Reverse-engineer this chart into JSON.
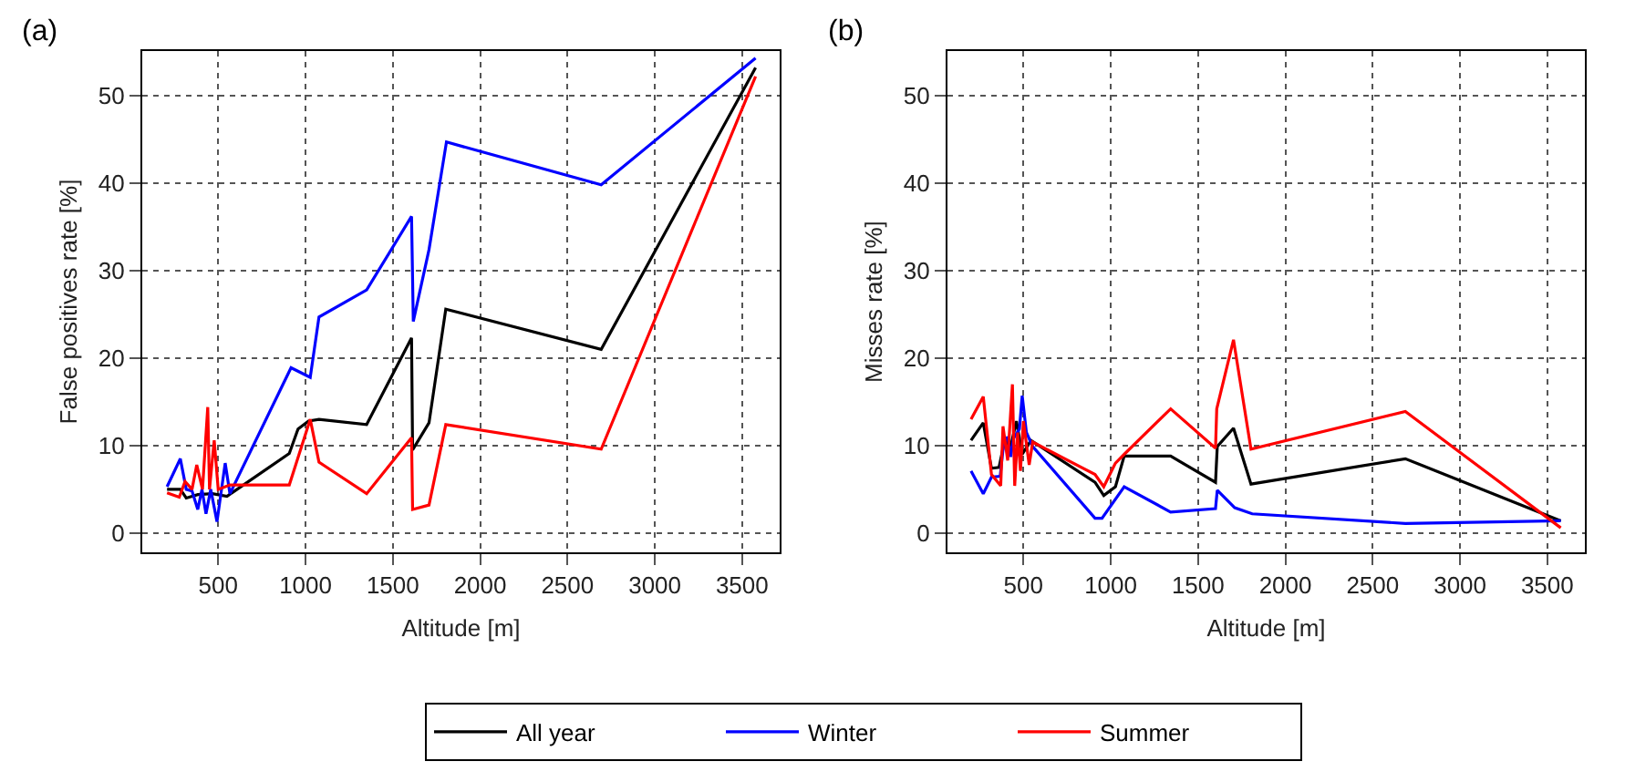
{
  "chart_data": [
    {
      "type": "line",
      "title": "(a)",
      "xlabel": "Altitude [m]",
      "ylabel": "False positives rate [%]",
      "xlim": [
        65,
        3715
      ],
      "ylim": [
        -2.2,
        55.1
      ],
      "xticks": [
        500,
        1000,
        1500,
        2000,
        2500,
        3000,
        3500
      ],
      "yticks": [
        0,
        10,
        20,
        30,
        40,
        50
      ],
      "grid": true,
      "legend": "bottom",
      "line_style": "solid",
      "marker": "none",
      "series": [
        {
          "name": "All year",
          "color": "#000000",
          "x": [
            207,
            283,
            317,
            383,
            467,
            550,
            907,
            957,
            1017,
            1077,
            1350,
            1607,
            1613,
            1707,
            1803,
            2693,
            3577
          ],
          "values": [
            5.0,
            5.0,
            4.0,
            4.4,
            4.5,
            4.2,
            9.1,
            11.9,
            12.8,
            13.0,
            12.4,
            22.3,
            9.5,
            12.6,
            25.6,
            21.0,
            53.2
          ]
        },
        {
          "name": "Winter",
          "color": "#0000ff",
          "x": [
            207,
            283,
            317,
            350,
            383,
            407,
            430,
            457,
            493,
            540,
            567,
            917,
            1027,
            1077,
            1350,
            1607,
            1617,
            1707,
            1807,
            2693,
            3577
          ],
          "values": [
            5.3,
            8.5,
            5.0,
            4.8,
            2.7,
            5.0,
            2.2,
            5.0,
            1.3,
            8.0,
            4.5,
            18.9,
            17.8,
            24.7,
            27.8,
            36.2,
            24.2,
            32.4,
            44.7,
            39.8,
            54.3
          ]
        },
        {
          "name": "Summer",
          "color": "#ff0000",
          "x": [
            207,
            277,
            310,
            350,
            377,
            410,
            440,
            450,
            477,
            500,
            567,
            907,
            1027,
            1077,
            1350,
            1607,
            1613,
            1707,
            1803,
            2693,
            3577
          ],
          "values": [
            4.6,
            4.1,
            5.9,
            5.0,
            7.8,
            5.0,
            14.4,
            5.0,
            10.6,
            5.0,
            5.5,
            5.5,
            13.0,
            8.1,
            4.5,
            10.9,
            2.7,
            3.2,
            12.4,
            9.6,
            52.2
          ]
        }
      ]
    },
    {
      "type": "line",
      "title": "(b)",
      "xlabel": "Altitude [m]",
      "ylabel": "Misses rate [%]",
      "xlim": [
        65,
        3715
      ],
      "ylim": [
        -2.2,
        55.1
      ],
      "xticks": [
        500,
        1000,
        1500,
        2000,
        2500,
        3000,
        3500
      ],
      "yticks": [
        0,
        10,
        20,
        30,
        40,
        50
      ],
      "grid": true,
      "line_style": "solid",
      "marker": "none",
      "series": [
        {
          "color": "#000000",
          "x": [
            200,
            270,
            317,
            360,
            393,
            427,
            460,
            493,
            543,
            910,
            960,
            1027,
            1077,
            1343,
            1600,
            1610,
            1703,
            1803,
            2687,
            3577
          ],
          "values": [
            10.6,
            12.6,
            7.4,
            7.5,
            10.6,
            9.9,
            12.8,
            9.0,
            10.6,
            5.8,
            4.3,
            5.3,
            8.8,
            8.8,
            5.8,
            9.9,
            12.0,
            5.6,
            8.5,
            1.4
          ]
        },
        {
          "color": "#0000ff",
          "x": [
            200,
            270,
            317,
            367,
            387,
            410,
            427,
            443,
            477,
            493,
            517,
            553,
            910,
            950,
            1077,
            1343,
            1600,
            1610,
            1710,
            1810,
            2687,
            3577
          ],
          "values": [
            7.1,
            4.5,
            6.4,
            6.5,
            10.3,
            11.0,
            8.7,
            10.8,
            11.9,
            15.7,
            11.5,
            9.9,
            1.7,
            1.7,
            5.3,
            2.4,
            2.8,
            4.9,
            2.9,
            2.2,
            1.1,
            1.4
          ]
        },
        {
          "color": "#ff0000",
          "x": [
            200,
            270,
            317,
            370,
            383,
            410,
            437,
            450,
            467,
            483,
            500,
            533,
            553,
            910,
            960,
            1027,
            1077,
            1343,
            1600,
            1607,
            1703,
            1803,
            2687,
            3577
          ],
          "values": [
            13.0,
            15.6,
            6.7,
            5.4,
            12.2,
            8.3,
            17.0,
            5.4,
            11.5,
            7.1,
            12.8,
            7.8,
            10.4,
            6.7,
            5.3,
            8.0,
            9.0,
            14.2,
            9.7,
            14.2,
            22.1,
            9.6,
            13.9,
            0.6
          ]
        }
      ]
    }
  ]
}
